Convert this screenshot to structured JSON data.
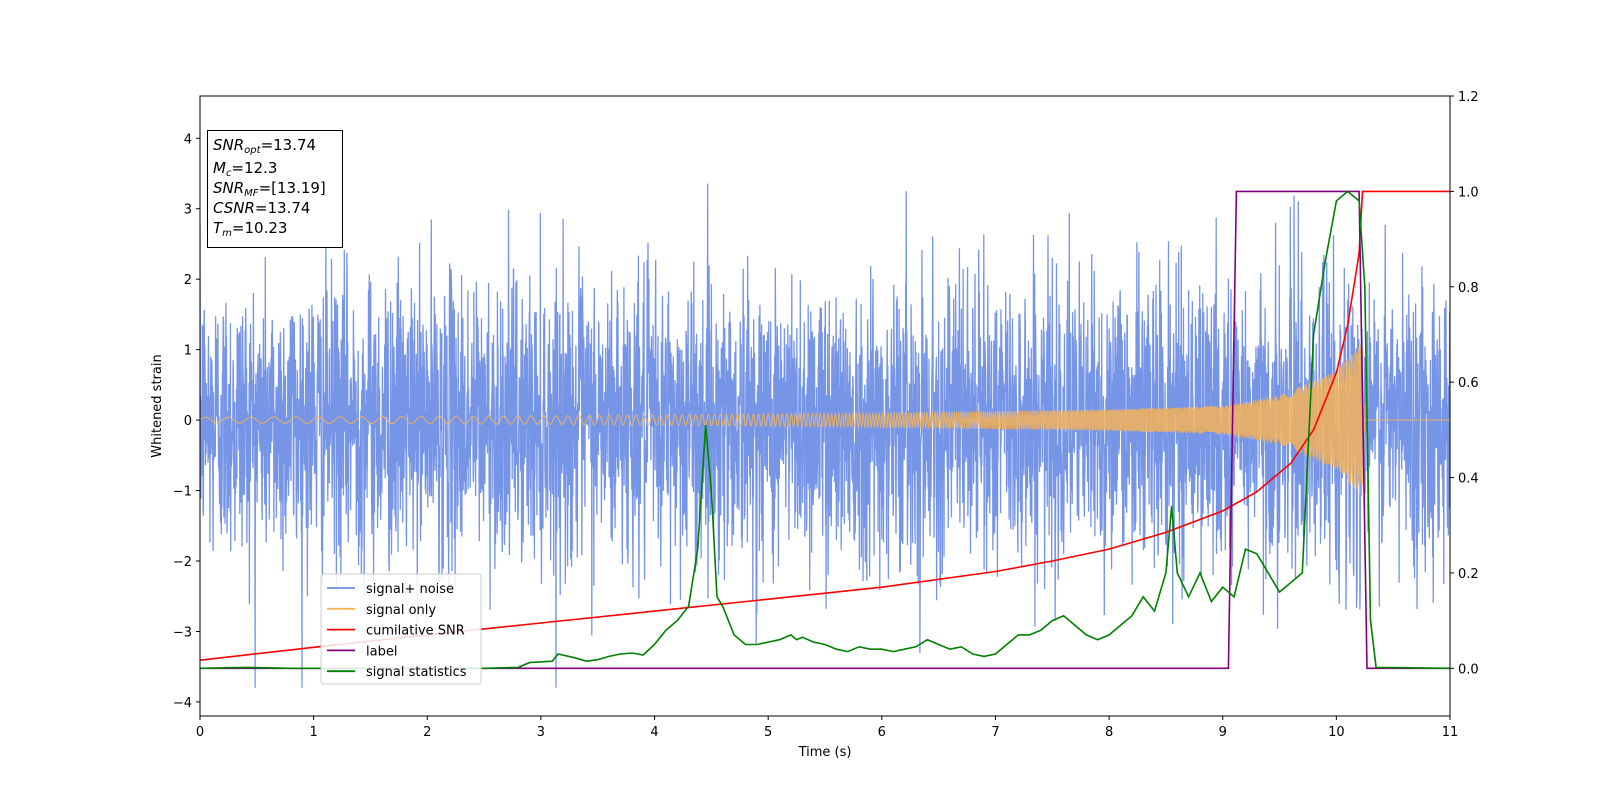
{
  "chart_data": {
    "type": "line",
    "xlabel": "Time (s)",
    "ylabel": "Whitened strain",
    "xlim": [
      0,
      11
    ],
    "ylim_left": [
      -4.2,
      4.6
    ],
    "ylim_right": [
      -0.1,
      1.2
    ],
    "x_ticks": [
      "0",
      "1",
      "2",
      "3",
      "4",
      "5",
      "6",
      "7",
      "8",
      "9",
      "10",
      "11"
    ],
    "y_ticks_left": [
      "−4",
      "−3",
      "−2",
      "−1",
      "0",
      "1",
      "2",
      "3",
      "4"
    ],
    "y_ticks_right": [
      "0.0",
      "0.2",
      "0.4",
      "0.6",
      "0.8",
      "1.0",
      "1.2"
    ],
    "grid": false,
    "legend_position": "lower-left",
    "infobox": {
      "snr_opt_sym": "SNR",
      "snr_opt_sub": "opt",
      "snr_opt_val": "=13.74",
      "mc_sym": "M",
      "mc_sub": "c",
      "mc_val": "=12.3",
      "snr_mf_sym": "SNR",
      "snr_mf_sub": "MF",
      "snr_mf_val": "=[13.19]",
      "csnr_sym": "CSNR",
      "csnr_val": "=13.74",
      "tm_sym": "T",
      "tm_sub": "m",
      "tm_val": "=10.23"
    },
    "series": [
      {
        "name": "signal+ noise",
        "axis": "left",
        "color": "#6f8fe6",
        "noise_std": 1.0,
        "typical_range": [
          -3.5,
          4.1
        ]
      },
      {
        "name": "signal only",
        "axis": "left",
        "color": "#f5b35a",
        "amplitude_envelope": [
          [
            0,
            0.04
          ],
          [
            3,
            0.06
          ],
          [
            6,
            0.1
          ],
          [
            8,
            0.15
          ],
          [
            9,
            0.2
          ],
          [
            9.5,
            0.35
          ],
          [
            10,
            0.7
          ],
          [
            10.23,
            1.1
          ],
          [
            10.25,
            0.0
          ],
          [
            11,
            0.0
          ]
        ]
      },
      {
        "name": "cumilative SNR",
        "axis": "right",
        "color": "#ff0000",
        "points": [
          [
            0,
            0.017
          ],
          [
            1,
            0.044
          ],
          [
            2,
            0.07
          ],
          [
            3,
            0.095
          ],
          [
            4,
            0.12
          ],
          [
            5,
            0.145
          ],
          [
            6,
            0.17
          ],
          [
            7,
            0.203
          ],
          [
            7.5,
            0.225
          ],
          [
            8,
            0.25
          ],
          [
            8.5,
            0.285
          ],
          [
            9,
            0.33
          ],
          [
            9.3,
            0.37
          ],
          [
            9.6,
            0.43
          ],
          [
            9.8,
            0.5
          ],
          [
            10,
            0.62
          ],
          [
            10.1,
            0.72
          ],
          [
            10.2,
            0.87
          ],
          [
            10.23,
            1.0
          ],
          [
            11,
            1.0
          ]
        ]
      },
      {
        "name": "label",
        "axis": "right",
        "color": "#800080",
        "points": [
          [
            0,
            0.0
          ],
          [
            9.05,
            0.0
          ],
          [
            9.12,
            1.0
          ],
          [
            10.2,
            1.0
          ],
          [
            10.27,
            0.0
          ],
          [
            11,
            0.0
          ]
        ]
      },
      {
        "name": "signal statistics",
        "axis": "right",
        "color": "#008000",
        "points": [
          [
            0,
            0.0
          ],
          [
            0.4,
            0.002
          ],
          [
            0.8,
            0.0
          ],
          [
            1.5,
            0.0
          ],
          [
            2,
            0.0
          ],
          [
            2.5,
            0.0
          ],
          [
            2.8,
            0.002
          ],
          [
            2.9,
            0.012
          ],
          [
            3.1,
            0.015
          ],
          [
            3.15,
            0.03
          ],
          [
            3.3,
            0.022
          ],
          [
            3.4,
            0.015
          ],
          [
            3.5,
            0.018
          ],
          [
            3.6,
            0.025
          ],
          [
            3.7,
            0.03
          ],
          [
            3.8,
            0.032
          ],
          [
            3.9,
            0.028
          ],
          [
            4.0,
            0.05
          ],
          [
            4.1,
            0.08
          ],
          [
            4.2,
            0.1
          ],
          [
            4.3,
            0.13
          ],
          [
            4.38,
            0.25
          ],
          [
            4.45,
            0.51
          ],
          [
            4.5,
            0.37
          ],
          [
            4.55,
            0.15
          ],
          [
            4.6,
            0.13
          ],
          [
            4.7,
            0.07
          ],
          [
            4.8,
            0.05
          ],
          [
            4.9,
            0.05
          ],
          [
            5.0,
            0.055
          ],
          [
            5.1,
            0.06
          ],
          [
            5.2,
            0.07
          ],
          [
            5.25,
            0.06
          ],
          [
            5.3,
            0.065
          ],
          [
            5.4,
            0.055
          ],
          [
            5.5,
            0.05
          ],
          [
            5.6,
            0.04
          ],
          [
            5.7,
            0.035
          ],
          [
            5.8,
            0.045
          ],
          [
            5.9,
            0.04
          ],
          [
            6.0,
            0.04
          ],
          [
            6.1,
            0.035
          ],
          [
            6.2,
            0.04
          ],
          [
            6.3,
            0.045
          ],
          [
            6.4,
            0.06
          ],
          [
            6.5,
            0.05
          ],
          [
            6.6,
            0.04
          ],
          [
            6.7,
            0.045
          ],
          [
            6.8,
            0.03
          ],
          [
            6.9,
            0.025
          ],
          [
            7.0,
            0.03
          ],
          [
            7.1,
            0.05
          ],
          [
            7.2,
            0.07
          ],
          [
            7.3,
            0.07
          ],
          [
            7.4,
            0.08
          ],
          [
            7.5,
            0.1
          ],
          [
            7.6,
            0.11
          ],
          [
            7.7,
            0.09
          ],
          [
            7.8,
            0.07
          ],
          [
            7.9,
            0.06
          ],
          [
            8.0,
            0.07
          ],
          [
            8.1,
            0.09
          ],
          [
            8.2,
            0.11
          ],
          [
            8.3,
            0.15
          ],
          [
            8.4,
            0.12
          ],
          [
            8.5,
            0.2
          ],
          [
            8.55,
            0.34
          ],
          [
            8.6,
            0.2
          ],
          [
            8.7,
            0.15
          ],
          [
            8.8,
            0.2
          ],
          [
            8.9,
            0.14
          ],
          [
            9.0,
            0.17
          ],
          [
            9.1,
            0.15
          ],
          [
            9.2,
            0.25
          ],
          [
            9.3,
            0.24
          ],
          [
            9.4,
            0.2
          ],
          [
            9.5,
            0.16
          ],
          [
            9.6,
            0.18
          ],
          [
            9.7,
            0.2
          ],
          [
            9.8,
            0.7
          ],
          [
            9.9,
            0.85
          ],
          [
            10.0,
            0.98
          ],
          [
            10.1,
            1.0
          ],
          [
            10.2,
            0.98
          ],
          [
            10.25,
            0.8
          ],
          [
            10.3,
            0.1
          ],
          [
            10.35,
            0.002
          ],
          [
            11,
            0.0
          ]
        ]
      }
    ]
  }
}
